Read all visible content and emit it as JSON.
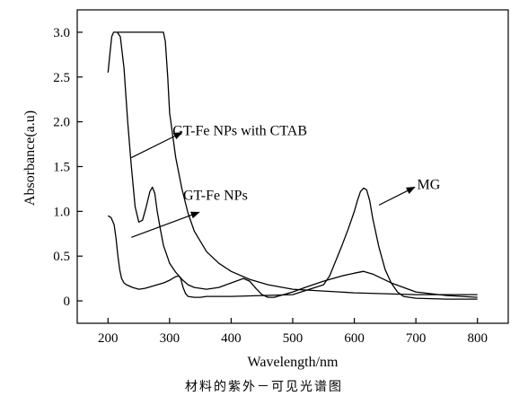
{
  "chart_data": {
    "type": "line",
    "xlabel": "Wavelength/nm",
    "ylabel": "Absorbance(a.u)",
    "xlim": [
      150,
      850
    ],
    "ylim": [
      -0.25,
      3.25
    ],
    "xticks": [
      200,
      300,
      400,
      500,
      600,
      700,
      800
    ],
    "yticks": [
      0,
      0.5,
      1.0,
      1.5,
      2.0,
      2.5,
      3.0
    ],
    "xtick_labels": [
      "200",
      "300",
      "400",
      "500",
      "600",
      "700",
      "800"
    ],
    "ytick_labels": [
      "0",
      "0.5",
      "1.0",
      "1.5",
      "2.0",
      "2.5",
      "3.0"
    ],
    "grid": false,
    "series": [
      {
        "name": "GT-Fe NPs with CTAB",
        "label_point": [
          230,
          1.6
        ],
        "x": [
          200,
          203,
          206,
          209,
          212,
          216,
          222,
          230,
          240,
          250,
          260,
          270,
          280,
          290,
          293,
          297,
          300,
          310,
          320,
          330,
          340,
          360,
          380,
          400,
          430,
          460,
          500,
          550,
          600,
          650,
          700,
          750,
          800
        ],
        "y": [
          2.55,
          2.75,
          2.95,
          3.0,
          3.0,
          3.0,
          3.0,
          3.0,
          3.0,
          3.0,
          3.0,
          3.0,
          3.0,
          3.0,
          2.9,
          2.5,
          2.1,
          1.6,
          1.25,
          0.98,
          0.78,
          0.55,
          0.42,
          0.33,
          0.24,
          0.18,
          0.13,
          0.11,
          0.09,
          0.08,
          0.07,
          0.07,
          0.07
        ]
      },
      {
        "name": "GT-Fe NPs",
        "label_point": [
          340,
          0.98
        ],
        "x": [
          215,
          220,
          226,
          232,
          238,
          244,
          250,
          256,
          262,
          268,
          272,
          276,
          280,
          285,
          290,
          300,
          310,
          320,
          330,
          340,
          360,
          380,
          400,
          420,
          430,
          440,
          450,
          460,
          470,
          480,
          500,
          520,
          550,
          580,
          600,
          615,
          630,
          660,
          700,
          750,
          800
        ],
        "y": [
          3.0,
          2.95,
          2.6,
          2.0,
          1.5,
          1.05,
          0.88,
          0.9,
          1.05,
          1.22,
          1.27,
          1.2,
          1.0,
          0.8,
          0.62,
          0.42,
          0.32,
          0.24,
          0.18,
          0.15,
          0.13,
          0.15,
          0.2,
          0.25,
          0.22,
          0.14,
          0.07,
          0.04,
          0.04,
          0.06,
          0.1,
          0.15,
          0.22,
          0.28,
          0.31,
          0.33,
          0.3,
          0.2,
          0.1,
          0.06,
          0.04
        ]
      },
      {
        "name": "MG",
        "label_point": [
          645,
          1.22
        ],
        "x": [
          200,
          205,
          210,
          213,
          216,
          219,
          222,
          226,
          230,
          240,
          250,
          260,
          270,
          280,
          290,
          300,
          305,
          310,
          315,
          318,
          322,
          326,
          330,
          340,
          350,
          360,
          380,
          400,
          450,
          500,
          550,
          560,
          570,
          580,
          590,
          600,
          605,
          610,
          615,
          620,
          625,
          630,
          640,
          650,
          660,
          670,
          680,
          700,
          750,
          800
        ],
        "y": [
          0.95,
          0.93,
          0.85,
          0.7,
          0.5,
          0.35,
          0.25,
          0.2,
          0.18,
          0.15,
          0.13,
          0.14,
          0.16,
          0.18,
          0.2,
          0.23,
          0.25,
          0.27,
          0.28,
          0.25,
          0.15,
          0.08,
          0.05,
          0.04,
          0.04,
          0.05,
          0.05,
          0.05,
          0.06,
          0.07,
          0.18,
          0.28,
          0.45,
          0.62,
          0.8,
          1.0,
          1.12,
          1.22,
          1.26,
          1.24,
          1.12,
          0.92,
          0.6,
          0.35,
          0.2,
          0.1,
          0.05,
          0.03,
          0.02,
          0.02
        ]
      }
    ],
    "annotations": [
      {
        "text": "GT-Fe NPs with CTAB",
        "text_at": [
          305,
          1.85
        ],
        "arrow_from": [
          238,
          1.6
        ],
        "arrow_to": [
          320,
          1.88
        ]
      },
      {
        "text": "GT-Fe NPs",
        "text_at": [
          322,
          1.13
        ],
        "arrow_from": [
          238,
          0.71
        ],
        "arrow_to": [
          348,
          0.99
        ]
      },
      {
        "text": "MG",
        "text_at": [
          702,
          1.25
        ],
        "arrow_from": [
          640,
          1.07
        ],
        "arrow_to": [
          698,
          1.27
        ]
      }
    ]
  },
  "caption": "材料的紫外－可见光谱图"
}
